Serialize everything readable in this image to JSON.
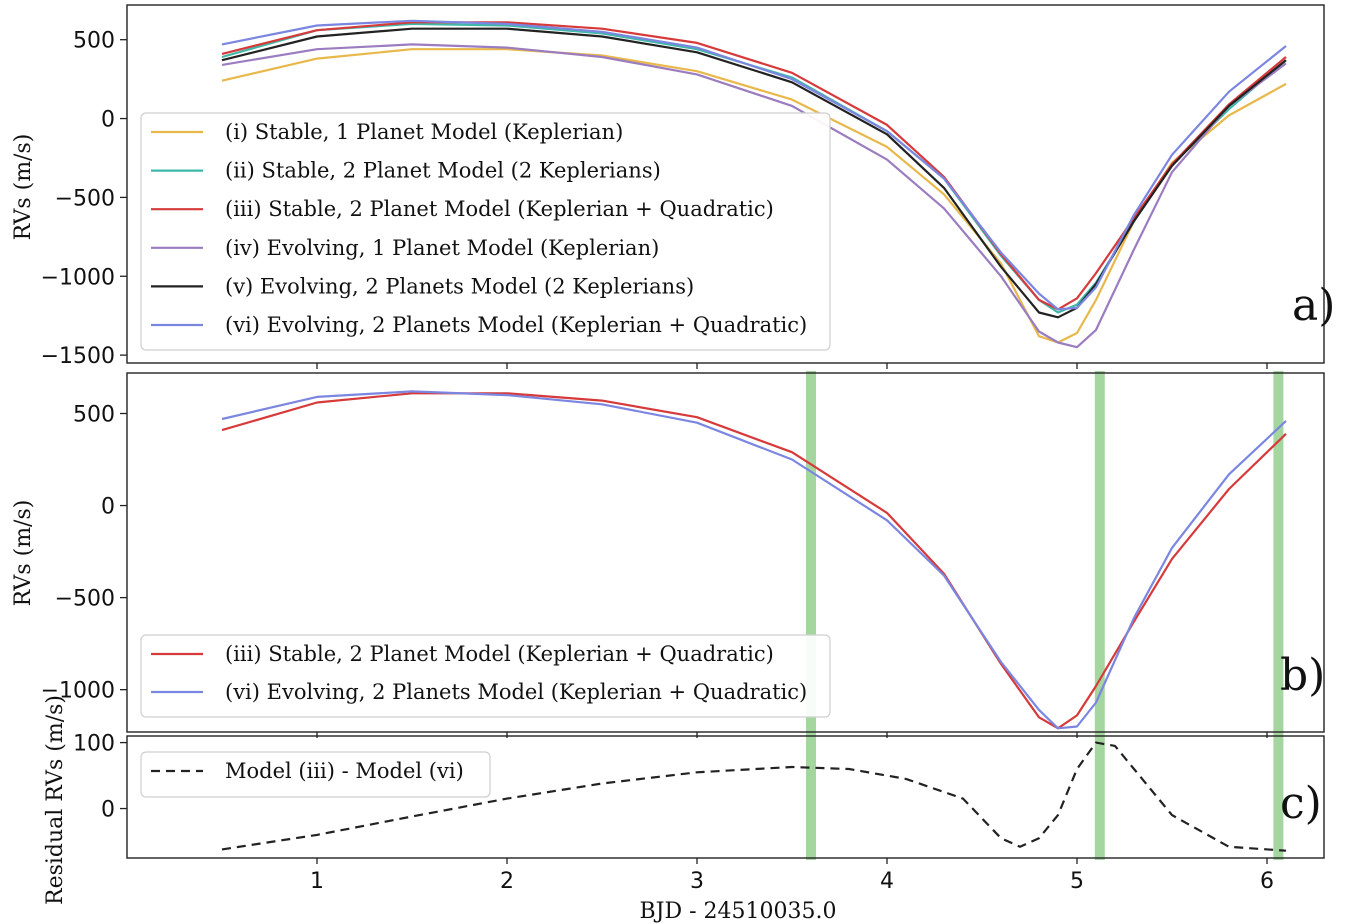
{
  "chart_data": [
    {
      "panel": "a",
      "type": "line",
      "xlabel": "",
      "ylabel": "RVs (m/s)",
      "xlim": [
        0.0,
        6.3
      ],
      "ylim": [
        -1550,
        720
      ],
      "yticks": [
        500,
        0,
        -500,
        -1000,
        -1500
      ],
      "ytick_labels": [
        "500",
        "0",
        "−500",
        "−1000",
        "−1500"
      ],
      "panel_label": "a)",
      "legend_placement": "lower-left",
      "series": [
        {
          "name": "(i) Stable, 1 Planet Model (Keplerian)",
          "color": "#e8b84a",
          "x": [
            0.5,
            1.0,
            1.5,
            2.0,
            2.5,
            3.0,
            3.5,
            4.0,
            4.3,
            4.6,
            4.8,
            4.9,
            5.0,
            5.1,
            5.3,
            5.5,
            5.8,
            6.1
          ],
          "y": [
            240,
            380,
            440,
            440,
            400,
            300,
            120,
            -180,
            -480,
            -920,
            -1380,
            -1420,
            -1360,
            -1150,
            -650,
            -280,
            20,
            220
          ]
        },
        {
          "name": "(ii) Stable, 2 Planet Model (2 Keplerians)",
          "color": "#3fb8a8",
          "x": [
            0.5,
            1.0,
            1.5,
            2.0,
            2.5,
            3.0,
            3.5,
            4.0,
            4.3,
            4.6,
            4.8,
            4.9,
            5.0,
            5.1,
            5.3,
            5.5,
            5.8,
            6.1
          ],
          "y": [
            390,
            560,
            600,
            590,
            540,
            440,
            260,
            -80,
            -380,
            -870,
            -1150,
            -1230,
            -1180,
            -1040,
            -650,
            -290,
            60,
            370
          ]
        },
        {
          "name": "(iii) Stable, 2 Planet Model (Keplerian + Quadratic)",
          "color": "#d63a3a",
          "x": [
            0.5,
            1.0,
            1.5,
            2.0,
            2.5,
            3.0,
            3.5,
            4.0,
            4.3,
            4.6,
            4.8,
            4.9,
            5.0,
            5.1,
            5.3,
            5.5,
            5.8,
            6.1
          ],
          "y": [
            410,
            560,
            610,
            610,
            570,
            480,
            290,
            -40,
            -370,
            -860,
            -1150,
            -1210,
            -1140,
            -980,
            -630,
            -290,
            90,
            390
          ]
        },
        {
          "name": "(iv) Evolving, 1 Planet Model (Keplerian)",
          "color": "#9b7cc0",
          "x": [
            0.5,
            1.0,
            1.5,
            2.0,
            2.5,
            3.0,
            3.5,
            4.0,
            4.3,
            4.6,
            4.8,
            4.9,
            5.0,
            5.1,
            5.3,
            5.5,
            5.8,
            6.1
          ],
          "y": [
            340,
            440,
            470,
            450,
            390,
            280,
            80,
            -260,
            -570,
            -1000,
            -1350,
            -1420,
            -1450,
            -1340,
            -830,
            -340,
            80,
            350
          ]
        },
        {
          "name": "(v) Evolving, 2 Planets Model (2 Keplerians)",
          "color": "#222222",
          "x": [
            0.5,
            1.0,
            1.5,
            2.0,
            2.5,
            3.0,
            3.5,
            4.0,
            4.3,
            4.6,
            4.8,
            4.9,
            5.0,
            5.1,
            5.3,
            5.5,
            5.8,
            6.1
          ],
          "y": [
            370,
            520,
            570,
            570,
            520,
            420,
            230,
            -100,
            -440,
            -940,
            -1230,
            -1260,
            -1200,
            -1050,
            -650,
            -300,
            80,
            370
          ]
        },
        {
          "name": "(vi) Evolving, 2 Planets Model (Keplerian + Quadratic)",
          "color": "#7b86e0",
          "x": [
            0.5,
            1.0,
            1.5,
            2.0,
            2.5,
            3.0,
            3.5,
            4.0,
            4.3,
            4.6,
            4.8,
            4.9,
            5.0,
            5.1,
            5.3,
            5.5,
            5.8,
            6.1
          ],
          "y": [
            470,
            590,
            620,
            600,
            550,
            450,
            250,
            -80,
            -380,
            -850,
            -1110,
            -1210,
            -1200,
            -1070,
            -610,
            -230,
            170,
            460
          ]
        }
      ]
    },
    {
      "panel": "b",
      "type": "line",
      "xlabel": "",
      "ylabel": "RVs (m/s)",
      "xlim": [
        0.0,
        6.3
      ],
      "ylim": [
        -1230,
        720
      ],
      "yticks": [
        500,
        0,
        -500,
        -1000
      ],
      "ytick_labels": [
        "500",
        "0",
        "−500",
        "−1000"
      ],
      "panel_label": "b)",
      "legend_placement": "lower-left",
      "highlight_x": [
        3.6,
        5.12,
        6.06
      ],
      "highlight_color": "#a5d6a0",
      "series": [
        {
          "name": "(iii) Stable, 2 Planet Model (Keplerian + Quadratic)",
          "color": "#d63a3a",
          "x": [
            0.5,
            1.0,
            1.5,
            2.0,
            2.5,
            3.0,
            3.5,
            4.0,
            4.3,
            4.6,
            4.8,
            4.9,
            5.0,
            5.1,
            5.3,
            5.5,
            5.8,
            6.1
          ],
          "y": [
            410,
            560,
            610,
            610,
            570,
            480,
            290,
            -40,
            -370,
            -860,
            -1150,
            -1210,
            -1140,
            -980,
            -630,
            -290,
            90,
            390
          ]
        },
        {
          "name": "(vi) Evolving, 2 Planets Model (Keplerian + Quadratic)",
          "color": "#7b86e0",
          "x": [
            0.5,
            1.0,
            1.5,
            2.0,
            2.5,
            3.0,
            3.5,
            4.0,
            4.3,
            4.6,
            4.8,
            4.9,
            5.0,
            5.1,
            5.3,
            5.5,
            5.8,
            6.1
          ],
          "y": [
            470,
            590,
            620,
            600,
            550,
            450,
            250,
            -80,
            -380,
            -850,
            -1110,
            -1210,
            -1200,
            -1070,
            -610,
            -230,
            170,
            460
          ]
        }
      ]
    },
    {
      "panel": "c",
      "type": "line",
      "xlabel": "BJD - 24510035.0",
      "ylabel": "Residual RVs (m/s)",
      "xlim": [
        0.0,
        6.3
      ],
      "ylim": [
        -75,
        110
      ],
      "xticks": [
        1,
        2,
        3,
        4,
        5,
        6
      ],
      "xtick_labels": [
        "1",
        "2",
        "3",
        "4",
        "5",
        "6"
      ],
      "yticks": [
        100,
        0
      ],
      "ytick_labels": [
        "100",
        "0"
      ],
      "panel_label": "c)",
      "legend_placement": "upper-left",
      "highlight_x": [
        3.6,
        5.12,
        6.06
      ],
      "highlight_color": "#a5d6a0",
      "series": [
        {
          "name": "Model (iii) - Model (vi)",
          "color": "#222222",
          "dash": "dashed",
          "x": [
            0.5,
            1.0,
            1.5,
            2.0,
            2.5,
            3.0,
            3.5,
            3.8,
            4.1,
            4.4,
            4.6,
            4.7,
            4.8,
            4.9,
            5.0,
            5.1,
            5.2,
            5.3,
            5.5,
            5.8,
            6.1
          ],
          "y": [
            -62,
            -40,
            -12,
            15,
            38,
            55,
            63,
            60,
            45,
            15,
            -45,
            -58,
            -45,
            -10,
            60,
            100,
            95,
            60,
            -10,
            -58,
            -64
          ]
        }
      ]
    }
  ]
}
